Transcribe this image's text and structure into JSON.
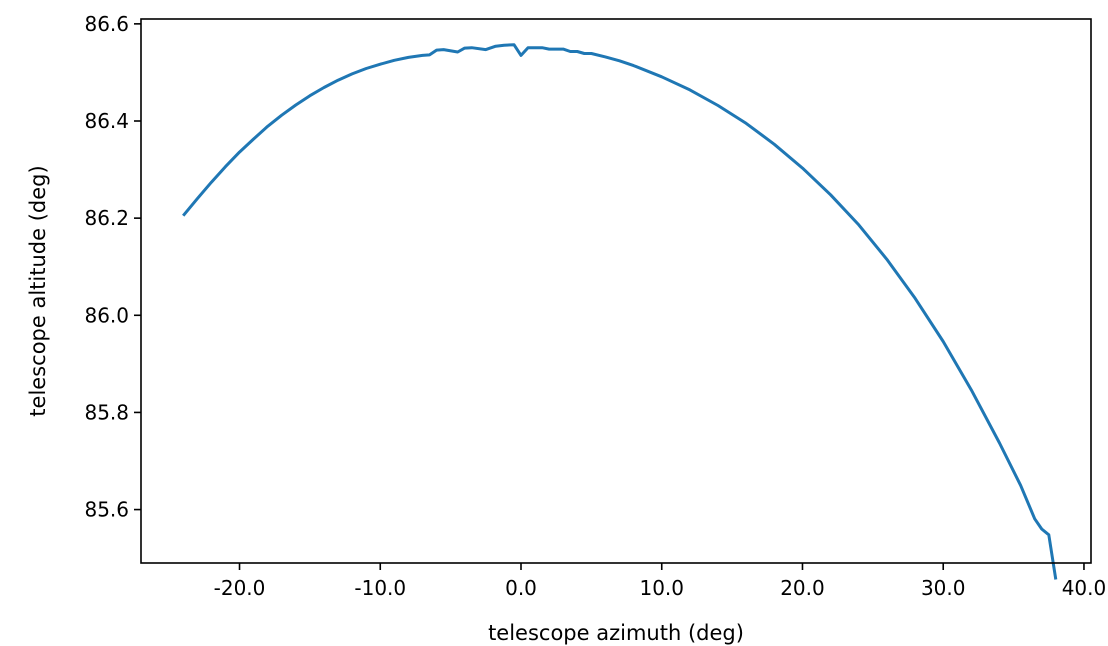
{
  "chart_data": {
    "type": "line",
    "title": "",
    "xlabel": "telescope azimuth (deg)",
    "ylabel": "telescope altitude (deg)",
    "xlim": [
      -27.0,
      40.5
    ],
    "ylim": [
      85.49,
      86.61
    ],
    "grid": false,
    "line_color": "#1f77b4",
    "x_ticks": [
      {
        "value": -20,
        "label": "-20.0"
      },
      {
        "value": -10,
        "label": "-10.0"
      },
      {
        "value": 0,
        "label": "0.0"
      },
      {
        "value": 10,
        "label": "10.0"
      },
      {
        "value": 20,
        "label": "20.0"
      },
      {
        "value": 30,
        "label": "30.0"
      },
      {
        "value": 40,
        "label": "40.0"
      }
    ],
    "y_ticks": [
      {
        "value": 85.6,
        "label": "85.6"
      },
      {
        "value": 85.8,
        "label": "85.8"
      },
      {
        "value": 86.0,
        "label": "86.0"
      },
      {
        "value": 86.2,
        "label": "86.2"
      },
      {
        "value": 86.4,
        "label": "86.4"
      },
      {
        "value": 86.6,
        "label": "86.6"
      }
    ],
    "series": [
      {
        "x": [
          -24.0,
          -23.0,
          -22.0,
          -21.0,
          -20.0,
          -19.0,
          -18.0,
          -17.0,
          -16.0,
          -15.0,
          -14.0,
          -13.0,
          -12.0,
          -11.0,
          -10.0,
          -9.0,
          -8.0,
          -7.0,
          -6.5,
          -6.0,
          -5.5,
          -4.5,
          -4.0,
          -3.5,
          -2.5,
          -1.8,
          -1.2,
          -0.5,
          0.0,
          0.5,
          1.5,
          2.0,
          3.0,
          3.5,
          4.0,
          4.5,
          5.0,
          6.0,
          7.0,
          8.0,
          10.0,
          12.0,
          14.0,
          16.0,
          18.0,
          20.0,
          22.0,
          24.0,
          26.0,
          28.0,
          30.0,
          32.0,
          34.0,
          35.5,
          36.5,
          37.0,
          37.5,
          38.0
        ],
        "y": [
          86.205,
          86.24,
          86.274,
          86.306,
          86.336,
          86.363,
          86.389,
          86.412,
          86.433,
          86.452,
          86.469,
          86.484,
          86.497,
          86.508,
          86.517,
          86.525,
          86.531,
          86.535,
          86.536,
          86.546,
          86.547,
          86.542,
          86.55,
          86.551,
          86.547,
          86.554,
          86.556,
          86.557,
          86.535,
          86.551,
          86.551,
          86.548,
          86.548,
          86.543,
          86.543,
          86.539,
          86.539,
          86.532,
          86.524,
          86.514,
          86.491,
          86.464,
          86.432,
          86.395,
          86.352,
          86.303,
          86.248,
          86.186,
          86.115,
          86.035,
          85.946,
          85.846,
          85.737,
          85.65,
          85.581,
          85.56,
          85.548,
          85.456
        ]
      }
    ]
  }
}
